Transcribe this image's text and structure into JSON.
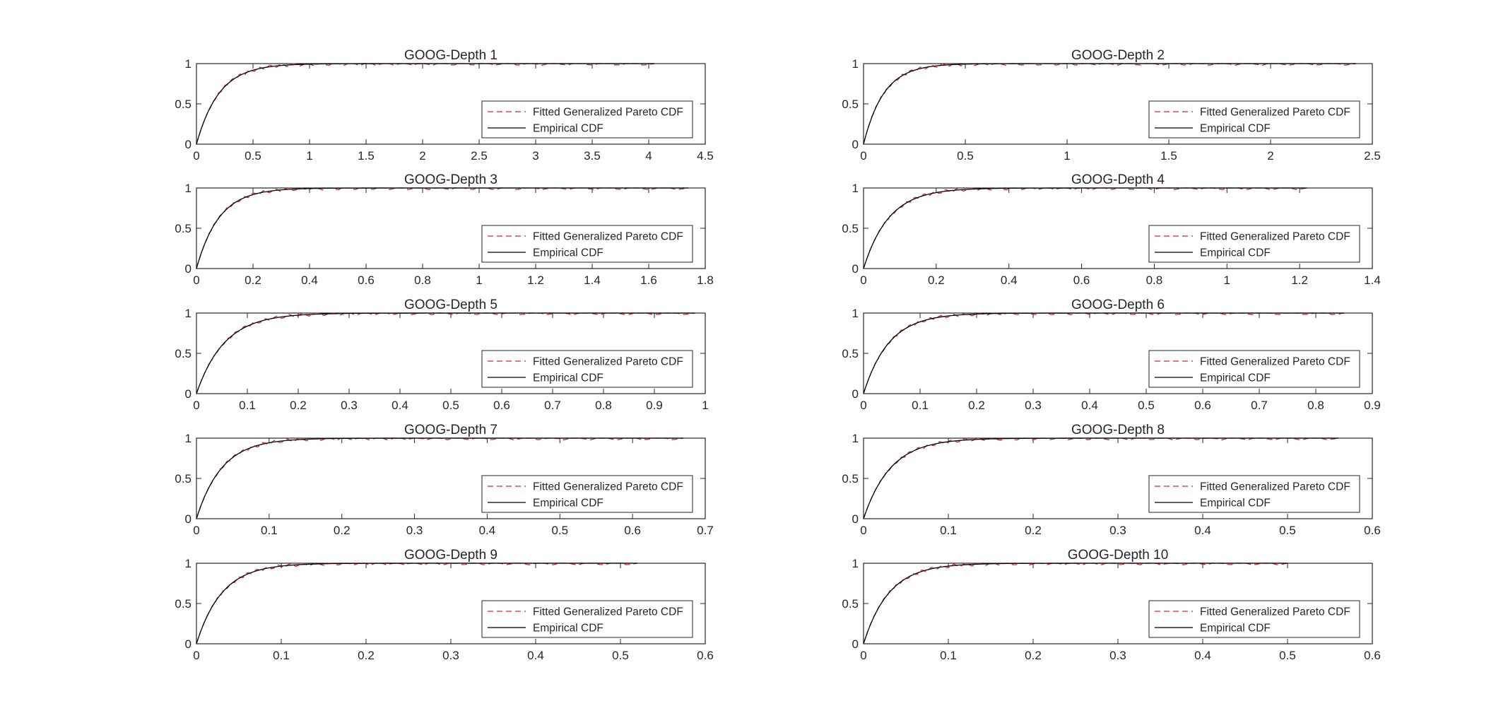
{
  "figure": {
    "background": "#ffffff"
  },
  "colors": {
    "fitted": "#d62728",
    "empirical": "#000000",
    "axis": "#262626"
  },
  "legend": {
    "placement": "center-right",
    "entries": [
      "Fitted Generalized Pareto CDF",
      "Empirical CDF"
    ]
  },
  "chart_data": [
    {
      "type": "line",
      "title": "GOOG-Depth 1",
      "xlim": [
        0,
        4.5
      ],
      "ylim": [
        0,
        1
      ],
      "xmax_data": 4.05,
      "scale": 0.2,
      "xticks": [
        "0",
        "0.5",
        "1",
        "1.5",
        "2",
        "2.5",
        "3",
        "3.5",
        "4",
        "4.5"
      ],
      "yticks": [
        "0",
        "0.5",
        "1"
      ],
      "series": [
        {
          "name": "Fitted Generalized Pareto CDF",
          "style": "dashed",
          "color": "#d62728"
        },
        {
          "name": "Empirical CDF",
          "style": "solid",
          "color": "#000000"
        }
      ]
    },
    {
      "type": "line",
      "title": "GOOG-Depth 2",
      "xlim": [
        0,
        2.5
      ],
      "ylim": [
        0,
        1
      ],
      "xmax_data": 2.42,
      "scale": 0.1,
      "xticks": [
        "0",
        "0.5",
        "1",
        "1.5",
        "2",
        "2.5"
      ],
      "yticks": [
        "0",
        "0.5",
        "1"
      ],
      "series": [
        {
          "name": "Fitted Generalized Pareto CDF",
          "style": "dashed",
          "color": "#d62728"
        },
        {
          "name": "Empirical CDF",
          "style": "solid",
          "color": "#000000"
        }
      ]
    },
    {
      "type": "line",
      "title": "GOOG-Depth 3",
      "xlim": [
        0,
        1.8
      ],
      "ylim": [
        0,
        1
      ],
      "xmax_data": 1.74,
      "scale": 0.08,
      "xticks": [
        "0",
        "0.2",
        "0.4",
        "0.6",
        "0.8",
        "1",
        "1.2",
        "1.4",
        "1.6",
        "1.8"
      ],
      "yticks": [
        "0",
        "0.5",
        "1"
      ],
      "series": [
        {
          "name": "Fitted Generalized Pareto CDF",
          "style": "dashed",
          "color": "#d62728"
        },
        {
          "name": "Empirical CDF",
          "style": "solid",
          "color": "#000000"
        }
      ]
    },
    {
      "type": "line",
      "title": "GOOG-Depth 4",
      "xlim": [
        0,
        1.4
      ],
      "ylim": [
        0,
        1
      ],
      "xmax_data": 1.22,
      "scale": 0.07,
      "xticks": [
        "0",
        "0.2",
        "0.4",
        "0.6",
        "0.8",
        "1",
        "1.2",
        "1.4"
      ],
      "yticks": [
        "0",
        "0.5",
        "1"
      ],
      "series": [
        {
          "name": "Fitted Generalized Pareto CDF",
          "style": "dashed",
          "color": "#d62728"
        },
        {
          "name": "Empirical CDF",
          "style": "solid",
          "color": "#000000"
        }
      ]
    },
    {
      "type": "line",
      "title": "GOOG-Depth 5",
      "xlim": [
        0,
        1
      ],
      "ylim": [
        0,
        1
      ],
      "xmax_data": 0.98,
      "scale": 0.055,
      "xticks": [
        "0",
        "0.1",
        "0.2",
        "0.3",
        "0.4",
        "0.5",
        "0.6",
        "0.7",
        "0.8",
        "0.9",
        "1"
      ],
      "yticks": [
        "0",
        "0.5",
        "1"
      ],
      "series": [
        {
          "name": "Fitted Generalized Pareto CDF",
          "style": "dashed",
          "color": "#d62728"
        },
        {
          "name": "Empirical CDF",
          "style": "solid",
          "color": "#000000"
        }
      ]
    },
    {
      "type": "line",
      "title": "GOOG-Depth 6",
      "xlim": [
        0,
        0.9
      ],
      "ylim": [
        0,
        1
      ],
      "xmax_data": 0.85,
      "scale": 0.045,
      "xticks": [
        "0",
        "0.1",
        "0.2",
        "0.3",
        "0.4",
        "0.5",
        "0.6",
        "0.7",
        "0.8",
        "0.9"
      ],
      "yticks": [
        "0",
        "0.5",
        "1"
      ],
      "series": [
        {
          "name": "Fitted Generalized Pareto CDF",
          "style": "dashed",
          "color": "#d62728"
        },
        {
          "name": "Empirical CDF",
          "style": "solid",
          "color": "#000000"
        }
      ]
    },
    {
      "type": "line",
      "title": "GOOG-Depth 7",
      "xlim": [
        0,
        0.7
      ],
      "ylim": [
        0,
        1
      ],
      "xmax_data": 0.67,
      "scale": 0.035,
      "xticks": [
        "0",
        "0.1",
        "0.2",
        "0.3",
        "0.4",
        "0.5",
        "0.6",
        "0.7"
      ],
      "yticks": [
        "0",
        "0.5",
        "1"
      ],
      "series": [
        {
          "name": "Fitted Generalized Pareto CDF",
          "style": "dashed",
          "color": "#d62728"
        },
        {
          "name": "Empirical CDF",
          "style": "solid",
          "color": "#000000"
        }
      ]
    },
    {
      "type": "line",
      "title": "GOOG-Depth 8",
      "xlim": [
        0,
        0.6
      ],
      "ylim": [
        0,
        1
      ],
      "xmax_data": 0.56,
      "scale": 0.032,
      "xticks": [
        "0",
        "0.1",
        "0.2",
        "0.3",
        "0.4",
        "0.5",
        "0.6"
      ],
      "yticks": [
        "0",
        "0.5",
        "1"
      ],
      "series": [
        {
          "name": "Fitted Generalized Pareto CDF",
          "style": "dashed",
          "color": "#d62728"
        },
        {
          "name": "Empirical CDF",
          "style": "solid",
          "color": "#000000"
        }
      ]
    },
    {
      "type": "line",
      "title": "GOOG-Depth 9",
      "xlim": [
        0,
        0.6
      ],
      "ylim": [
        0,
        1
      ],
      "xmax_data": 0.52,
      "scale": 0.03,
      "xticks": [
        "0",
        "0.1",
        "0.2",
        "0.3",
        "0.4",
        "0.5",
        "0.6"
      ],
      "yticks": [
        "0",
        "0.5",
        "1"
      ],
      "series": [
        {
          "name": "Fitted Generalized Pareto CDF",
          "style": "dashed",
          "color": "#d62728"
        },
        {
          "name": "Empirical CDF",
          "style": "solid",
          "color": "#000000"
        }
      ]
    },
    {
      "type": "line",
      "title": "GOOG-Depth 10",
      "xlim": [
        0,
        0.6
      ],
      "ylim": [
        0,
        1
      ],
      "xmax_data": 0.5,
      "scale": 0.03,
      "xticks": [
        "0",
        "0.1",
        "0.2",
        "0.3",
        "0.4",
        "0.5",
        "0.6"
      ],
      "yticks": [
        "0",
        "0.5",
        "1"
      ],
      "series": [
        {
          "name": "Fitted Generalized Pareto CDF",
          "style": "dashed",
          "color": "#d62728"
        },
        {
          "name": "Empirical CDF",
          "style": "solid",
          "color": "#000000"
        }
      ]
    }
  ]
}
